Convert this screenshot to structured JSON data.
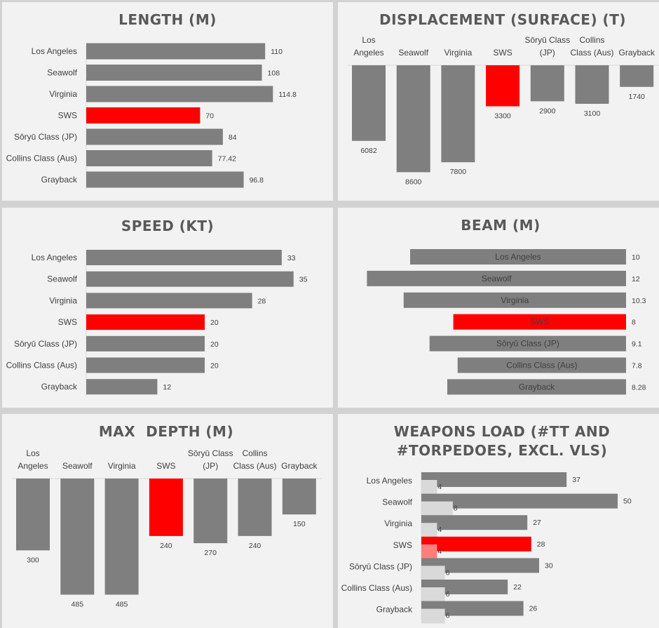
{
  "colors": {
    "bar": "#7f7f7f",
    "highlight": "#ff0000",
    "secondary": "#d9d9d9",
    "secondary_highlight": "#ff7f7f"
  },
  "chart_data": [
    {
      "id": "length",
      "type": "bar",
      "orientation": "horizontal",
      "title": "LENGTH (M)",
      "categories": [
        "Los Angeles",
        "Seawolf",
        "Virginia",
        "SWS",
        "Sōryū Class (JP)",
        "Collins Class (Aus)",
        "Grayback"
      ],
      "values": [
        110,
        108,
        114.8,
        70,
        84,
        77.42,
        96.8
      ],
      "value_labels": [
        "110",
        "108",
        "114.8",
        "70",
        "84",
        "77.42",
        "96.8"
      ],
      "highlight": "SWS"
    },
    {
      "id": "displacement",
      "type": "bar",
      "orientation": "vertical-downward",
      "title": "DISPLACEMENT (SURFACE) (T)",
      "categories": [
        "Los Angeles",
        "Seawolf",
        "Virginia",
        "SWS",
        "Sōryū Class (JP)",
        "Collins Class (Aus)",
        "Grayback"
      ],
      "category_lines": [
        [
          "Los",
          "Angeles"
        ],
        [
          "Seawolf"
        ],
        [
          "Virginia"
        ],
        [
          "SWS"
        ],
        [
          "Sōryū Class",
          "(JP)"
        ],
        [
          "Collins",
          "Class (Aus)"
        ],
        [
          "Grayback"
        ]
      ],
      "values": [
        6082,
        8600,
        7800,
        3300,
        2900,
        3100,
        1740
      ],
      "value_labels": [
        "6082",
        "8600",
        "7800",
        "3300",
        "2900",
        "3100",
        "1740"
      ],
      "highlight": "SWS"
    },
    {
      "id": "speed",
      "type": "bar",
      "orientation": "horizontal",
      "title": "SPEED (KT)",
      "categories": [
        "Los Angeles",
        "Seawolf",
        "Virginia",
        "SWS",
        "Sōryū Class (JP)",
        "Collins Class (Aus)",
        "Grayback"
      ],
      "values": [
        33,
        35,
        28,
        20,
        20,
        20,
        12
      ],
      "value_labels": [
        "33",
        "35",
        "28",
        "20",
        "20",
        "20",
        "12"
      ],
      "highlight": "SWS"
    },
    {
      "id": "beam",
      "type": "bar",
      "orientation": "horizontal-centered",
      "title": "BEAM (M)",
      "categories": [
        "Los Angeles",
        "Seawolf",
        "Virginia",
        "SWS",
        "Sōryū Class (JP)",
        "Collins Class (Aus)",
        "Grayback"
      ],
      "values": [
        10,
        12,
        10.3,
        8,
        9.1,
        7.8,
        8.28
      ],
      "value_labels": [
        "10",
        "12",
        "10.3",
        "8",
        "9.1",
        "7.8",
        "8.28"
      ],
      "highlight": "SWS"
    },
    {
      "id": "depth",
      "type": "bar",
      "orientation": "vertical-downward",
      "title": "MAX  DEPTH (M)",
      "categories": [
        "Los Angeles",
        "Seawolf",
        "Virginia",
        "SWS",
        "Sōryū Class (JP)",
        "Collins Class (Aus)",
        "Grayback"
      ],
      "category_lines": [
        [
          "Los",
          "Angeles"
        ],
        [
          "Seawolf"
        ],
        [
          "Virginia"
        ],
        [
          "SWS"
        ],
        [
          "Sōryū Class",
          "(JP)"
        ],
        [
          "Collins",
          "Class (Aus)"
        ],
        [
          "Grayback"
        ]
      ],
      "values": [
        300,
        485,
        485,
        240,
        270,
        240,
        150
      ],
      "value_labels": [
        "300",
        "485",
        "485",
        "240",
        "270",
        "240",
        "150"
      ],
      "highlight": "SWS"
    },
    {
      "id": "weapons",
      "type": "bar",
      "orientation": "horizontal-overlapped",
      "title": "WEAPONS LOAD (#TT AND #TORPEDOES, EXCL. VLS)",
      "title_lines": [
        "WEAPONS LOAD (#TT AND",
        "#TORPEDOES, EXCL. VLS)"
      ],
      "categories": [
        "Los Angeles",
        "Seawolf",
        "Virginia",
        "SWS",
        "Sōryū Class (JP)",
        "Collins Class (Aus)",
        "Grayback"
      ],
      "series": [
        {
          "values": [
            37,
            50,
            27,
            28,
            30,
            22,
            26
          ],
          "value_labels": [
            "37",
            "50",
            "27",
            "28",
            "30",
            "22",
            "26"
          ]
        },
        {
          "values": [
            4,
            8,
            4,
            4,
            6,
            6,
            6
          ],
          "value_labels": [
            "4",
            "8",
            "4",
            "4",
            "6",
            "6",
            "6"
          ]
        }
      ],
      "highlight": "SWS"
    }
  ]
}
